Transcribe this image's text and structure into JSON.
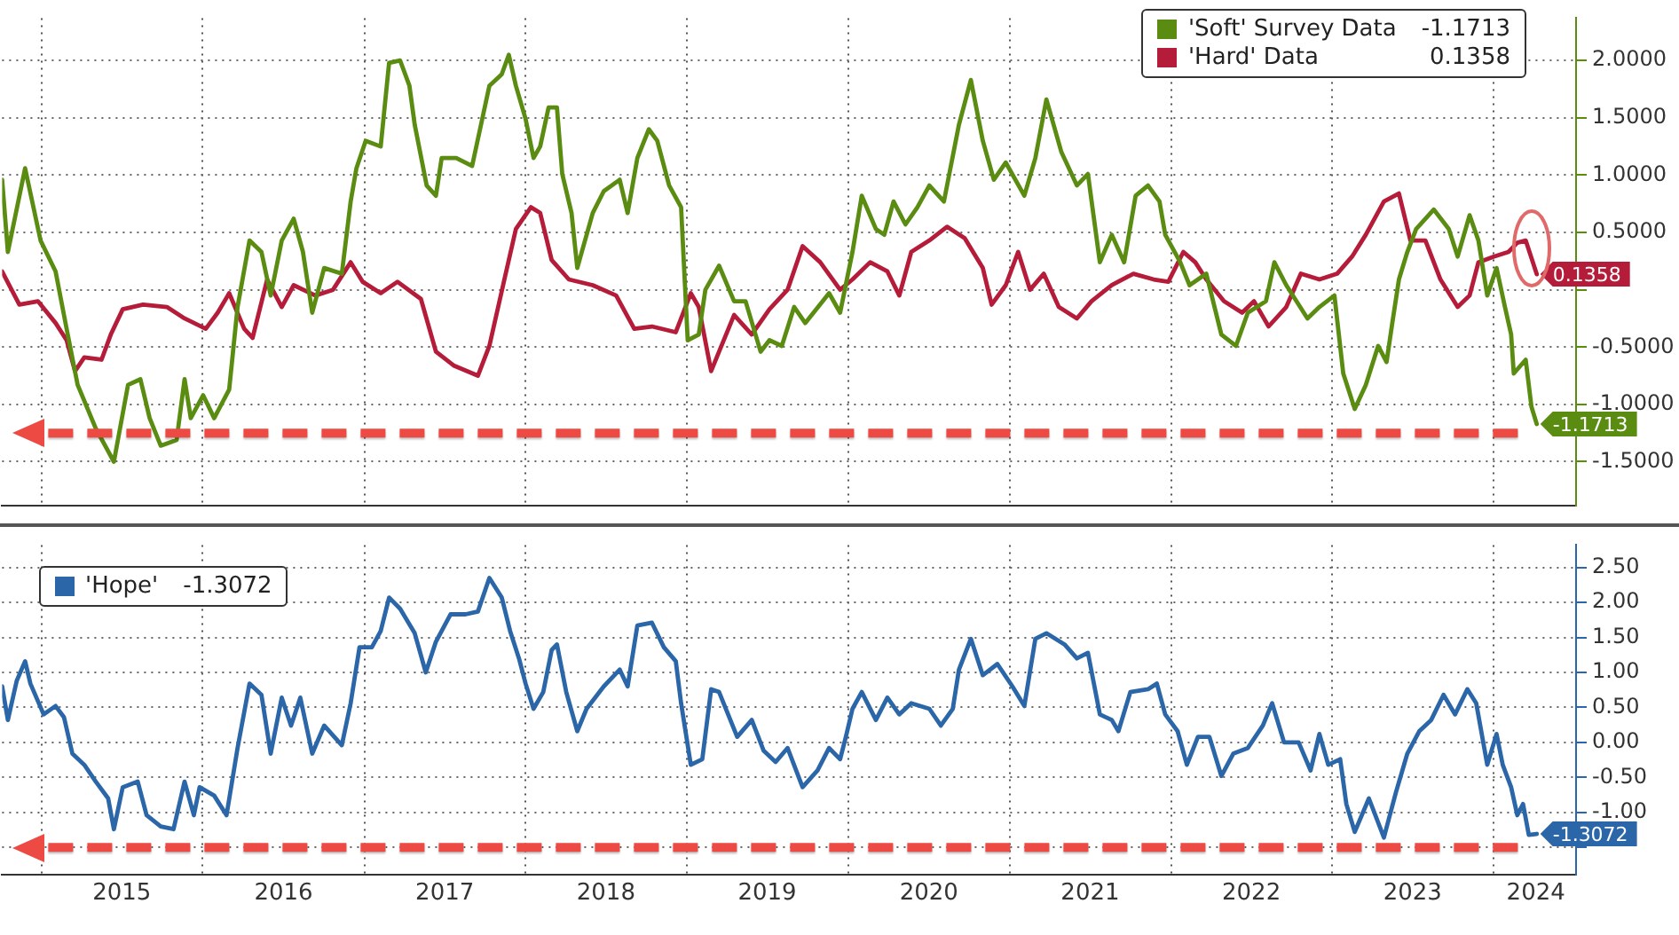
{
  "chart_data": [
    {
      "type": "line",
      "legend": "top right",
      "grid": true,
      "tick_labels": "y",
      "marker": "none",
      "xlim": [
        "2014-10-04",
        "2024-07-06"
      ],
      "xticks": [
        {
          "value": "2015-01-01",
          "label": null
        },
        {
          "value": "2016-01-01",
          "label": null
        },
        {
          "value": "2017-01-01",
          "label": null
        },
        {
          "value": "2018-01-01",
          "label": null
        },
        {
          "value": "2019-01-01",
          "label": null
        },
        {
          "value": "2020-01-01",
          "label": null
        },
        {
          "value": "2021-01-01",
          "label": null
        },
        {
          "value": "2022-01-01",
          "label": null
        },
        {
          "value": "2023-01-01",
          "label": null
        },
        {
          "value": "2024-01-01",
          "label": null
        }
      ],
      "ylim": [
        -1.88,
        2.37
      ],
      "yticks": [
        {
          "value": -1.5,
          "label": "-1.5000"
        },
        {
          "value": -1,
          "label": "-1.0000"
        },
        {
          "value": -0.5,
          "label": "-0.5000"
        },
        {
          "value": 0,
          "label": null
        },
        {
          "value": 0.5,
          "label": "0.5000"
        },
        {
          "value": 1,
          "label": "1.0000"
        },
        {
          "value": 1.5,
          "label": "1.5000"
        },
        {
          "value": 2,
          "label": "2.0000"
        }
      ],
      "ref_lines": [
        {
          "axis": "y",
          "value": -1.25,
          "label": null,
          "color": "#ee4a44",
          "line_style": "dashed"
        }
      ],
      "series": [
        {
          "name": "'Soft' Survey Data",
          "color": "#5b8c12",
          "x": [
            "2014-10-04",
            "2014-10-17",
            "2014-11-25",
            "2014-12-30",
            "2015-02-02",
            "2015-02-27",
            "2015-03-24",
            "2015-05-04",
            "2015-06-14",
            "2015-07-16",
            "2015-08-13",
            "2015-09-03",
            "2015-09-28",
            "2015-11-03",
            "2015-11-21",
            "2015-12-05",
            "2016-01-02",
            "2016-01-27",
            "2016-03-01",
            "2016-03-20",
            "2016-04-16",
            "2016-05-13",
            "2016-06-03",
            "2016-06-28",
            "2016-07-25",
            "2016-08-15",
            "2016-09-05",
            "2016-10-02",
            "2016-11-11",
            "2016-12-01",
            "2016-12-14",
            "2017-01-04",
            "2017-02-07",
            "2017-02-26",
            "2017-03-23",
            "2017-04-13",
            "2017-04-25",
            "2017-05-22",
            "2017-06-12",
            "2017-06-25",
            "2017-07-28",
            "2017-09-02",
            "2017-10-11",
            "2017-11-08",
            "2017-11-24",
            "2017-12-10",
            "2018-01-01",
            "2018-01-19",
            "2018-02-03",
            "2018-02-22",
            "2018-03-13",
            "2018-03-25",
            "2018-04-15",
            "2018-04-28",
            "2018-06-02",
            "2018-06-27",
            "2018-08-02",
            "2018-08-20",
            "2018-09-11",
            "2018-10-07",
            "2018-10-26",
            "2018-11-22",
            "2018-12-19",
            "2019-01-03",
            "2019-01-28",
            "2019-02-12",
            "2019-03-15",
            "2019-04-18",
            "2019-05-14",
            "2019-06-17",
            "2019-07-07",
            "2019-08-04",
            "2019-09-01",
            "2019-09-26",
            "2019-11-19",
            "2019-12-14",
            "2020-01-11",
            "2020-02-01",
            "2020-03-04",
            "2020-03-23",
            "2020-04-13",
            "2020-05-10",
            "2020-06-06",
            "2020-07-03",
            "2020-08-05",
            "2020-09-08",
            "2020-10-05",
            "2020-11-01",
            "2020-11-26",
            "2020-12-23",
            "2021-02-03",
            "2021-02-28",
            "2021-03-25",
            "2021-04-28",
            "2021-06-02",
            "2021-06-27",
            "2021-07-24",
            "2021-08-20",
            "2021-09-17",
            "2021-10-13",
            "2021-11-10",
            "2021-12-06",
            "2021-12-19",
            "2022-01-22",
            "2022-02-12",
            "2022-03-22",
            "2022-04-25",
            "2022-05-28",
            "2022-06-24",
            "2022-08-04",
            "2022-08-23",
            "2022-09-19",
            "2022-11-06",
            "2022-12-03",
            "2023-01-06",
            "2023-01-26",
            "2023-02-21",
            "2023-03-18",
            "2023-04-15",
            "2023-05-04",
            "2023-05-17",
            "2023-06-01",
            "2023-06-20",
            "2023-07-10",
            "2023-08-19",
            "2023-09-22",
            "2023-10-12",
            "2023-11-08",
            "2023-11-28",
            "2023-12-18",
            "2024-01-08",
            "2024-01-27",
            "2024-02-10",
            "2024-02-16",
            "2024-03-14",
            "2024-03-27",
            "2024-04-08"
          ],
          "values": [
            0.96,
            0.33,
            1.06,
            0.43,
            0.16,
            -0.34,
            -0.83,
            -1.21,
            -1.5,
            -0.83,
            -0.78,
            -1.12,
            -1.36,
            -1.31,
            -0.78,
            -1.12,
            -0.92,
            -1.12,
            -0.87,
            -0.15,
            0.43,
            0.33,
            -0.05,
            0.43,
            0.62,
            0.33,
            -0.2,
            0.19,
            0.14,
            0.77,
            1.06,
            1.3,
            1.25,
            1.98,
            2.0,
            1.78,
            1.44,
            0.91,
            0.82,
            1.15,
            1.15,
            1.08,
            1.78,
            1.88,
            2.05,
            1.78,
            1.49,
            1.15,
            1.25,
            1.59,
            1.59,
            1.01,
            0.67,
            0.19,
            0.67,
            0.86,
            0.96,
            0.67,
            1.15,
            1.4,
            1.3,
            0.91,
            0.72,
            -0.44,
            -0.39,
            0.0,
            0.21,
            -0.1,
            -0.1,
            -0.54,
            -0.44,
            -0.49,
            -0.15,
            -0.29,
            -0.03,
            -0.2,
            0.33,
            0.82,
            0.53,
            0.48,
            0.77,
            0.57,
            0.72,
            0.91,
            0.77,
            1.44,
            1.83,
            1.3,
            0.96,
            1.11,
            0.82,
            1.15,
            1.66,
            1.2,
            0.91,
            1.01,
            0.24,
            0.48,
            0.24,
            0.82,
            0.91,
            0.77,
            0.48,
            0.24,
            0.04,
            0.14,
            -0.39,
            -0.49,
            -0.2,
            -0.1,
            0.24,
            0.04,
            -0.25,
            -0.15,
            -0.05,
            -0.73,
            -1.04,
            -0.83,
            -0.49,
            -0.63,
            -0.29,
            0.09,
            0.33,
            0.53,
            0.7,
            0.53,
            0.29,
            0.65,
            0.43,
            -0.05,
            0.19,
            -0.15,
            -0.39,
            -0.73,
            -0.61,
            -1.02,
            -1.1713
          ],
          "value_labels": [
            null,
            null,
            null,
            null,
            null,
            null,
            null,
            null,
            null,
            null,
            null,
            null,
            null,
            null,
            null,
            null,
            null,
            null,
            null,
            null,
            null,
            null,
            null,
            null,
            null,
            null,
            null,
            null,
            null,
            null,
            null,
            null,
            null,
            null,
            null,
            null,
            null,
            null,
            null,
            null,
            null,
            null,
            null,
            null,
            null,
            null,
            null,
            null,
            null,
            null,
            null,
            null,
            null,
            null,
            null,
            null,
            null,
            null,
            null,
            null,
            null,
            null,
            null,
            null,
            null,
            null,
            null,
            null,
            null,
            null,
            null,
            null,
            null,
            null,
            null,
            null,
            null,
            null,
            null,
            null,
            null,
            null,
            null,
            null,
            null,
            null,
            null,
            null,
            null,
            null,
            null,
            null,
            null,
            null,
            null,
            null,
            null,
            null,
            null,
            null,
            null,
            null,
            null,
            null,
            null,
            null,
            null,
            null,
            null,
            null,
            null,
            null,
            null,
            null,
            null,
            null,
            null,
            null,
            null,
            null,
            null,
            null,
            null,
            null,
            null,
            null,
            null,
            null,
            null,
            null,
            null,
            null,
            null,
            null,
            null,
            null,
            "-1.1713"
          ]
        },
        {
          "name": "'Hard' Data",
          "color": "#b51c3a",
          "x": [
            "2014-10-04",
            "2014-11-12",
            "2014-12-24",
            "2015-02-02",
            "2015-02-27",
            "2015-03-18",
            "2015-04-08",
            "2015-05-17",
            "2015-06-07",
            "2015-07-04",
            "2015-08-19",
            "2015-10-12",
            "2015-11-21",
            "2016-01-08",
            "2016-02-04",
            "2016-03-01",
            "2016-04-04",
            "2016-04-23",
            "2016-05-26",
            "2016-06-28",
            "2016-07-25",
            "2016-09-12",
            "2016-10-22",
            "2016-12-01",
            "2016-12-28",
            "2017-02-07",
            "2017-03-17",
            "2017-05-09",
            "2017-06-12",
            "2017-07-22",
            "2017-09-15",
            "2017-10-11",
            "2017-11-14",
            "2017-12-10",
            "2018-01-13",
            "2018-02-03",
            "2018-03-01",
            "2018-04-09",
            "2018-06-02",
            "2018-07-25",
            "2018-09-04",
            "2018-10-14",
            "2018-12-07",
            "2019-01-10",
            "2019-01-28",
            "2019-02-25",
            "2019-03-15",
            "2019-04-18",
            "2019-05-28",
            "2019-07-07",
            "2019-08-17",
            "2019-09-20",
            "2019-10-30",
            "2019-12-14",
            "2020-01-11",
            "2020-02-20",
            "2020-03-30",
            "2020-04-26",
            "2020-05-23",
            "2020-07-03",
            "2020-08-12",
            "2020-09-21",
            "2020-11-01",
            "2020-11-21",
            "2020-12-23",
            "2021-01-20",
            "2021-02-16",
            "2021-03-19",
            "2021-04-22",
            "2021-06-02",
            "2021-07-05",
            "2021-08-20",
            "2021-10-08",
            "2021-11-23",
            "2021-12-26",
            "2022-01-29",
            "2022-02-25",
            "2022-03-22",
            "2022-05-01",
            "2022-06-11",
            "2022-07-08",
            "2022-08-10",
            "2022-09-19",
            "2022-10-22",
            "2022-12-03",
            "2023-01-12",
            "2023-02-15",
            "2023-03-18",
            "2023-04-28",
            "2023-06-01",
            "2023-06-27",
            "2023-07-31",
            "2023-09-03",
            "2023-10-12",
            "2023-11-08",
            "2023-11-28",
            "2024-01-02",
            "2024-02-04",
            "2024-02-24",
            "2024-03-14",
            "2024-04-08"
          ],
          "values": [
            0.16,
            -0.13,
            -0.1,
            -0.29,
            -0.44,
            -0.71,
            -0.59,
            -0.61,
            -0.39,
            -0.17,
            -0.13,
            -0.15,
            -0.25,
            -0.34,
            -0.2,
            -0.03,
            -0.34,
            -0.42,
            0.09,
            -0.15,
            0.04,
            -0.05,
            0.0,
            0.24,
            0.07,
            -0.03,
            0.07,
            -0.08,
            -0.54,
            -0.66,
            -0.75,
            -0.49,
            0.09,
            0.53,
            0.72,
            0.67,
            0.26,
            0.09,
            0.04,
            -0.05,
            -0.34,
            -0.32,
            -0.37,
            -0.03,
            -0.15,
            -0.71,
            -0.54,
            -0.22,
            -0.39,
            -0.17,
            0.0,
            0.38,
            0.24,
            0.0,
            0.09,
            0.24,
            0.16,
            -0.05,
            0.33,
            0.43,
            0.55,
            0.45,
            0.19,
            -0.13,
            0.04,
            0.33,
            0.0,
            0.14,
            -0.15,
            -0.25,
            -0.1,
            0.04,
            0.14,
            0.09,
            0.07,
            0.33,
            0.24,
            0.09,
            -0.1,
            -0.2,
            -0.1,
            -0.32,
            -0.15,
            0.14,
            0.09,
            0.14,
            0.29,
            0.48,
            0.77,
            0.84,
            0.43,
            0.43,
            0.09,
            -0.15,
            -0.05,
            0.24,
            0.29,
            0.33,
            0.41,
            0.43,
            0.1358
          ],
          "value_labels": [
            null,
            null,
            null,
            null,
            null,
            null,
            null,
            null,
            null,
            null,
            null,
            null,
            null,
            null,
            null,
            null,
            null,
            null,
            null,
            null,
            null,
            null,
            null,
            null,
            null,
            null,
            null,
            null,
            null,
            null,
            null,
            null,
            null,
            null,
            null,
            null,
            null,
            null,
            null,
            null,
            null,
            null,
            null,
            null,
            null,
            null,
            null,
            null,
            null,
            null,
            null,
            null,
            null,
            null,
            null,
            null,
            null,
            null,
            null,
            null,
            null,
            null,
            null,
            null,
            null,
            null,
            null,
            null,
            null,
            null,
            null,
            null,
            null,
            null,
            null,
            null,
            null,
            null,
            null,
            null,
            null,
            null,
            null,
            null,
            null,
            null,
            null,
            null,
            null,
            null,
            null,
            null,
            null,
            null,
            null,
            null,
            null,
            null,
            null,
            null,
            "0.1358"
          ]
        }
      ]
    },
    {
      "type": "line",
      "legend": "top left",
      "grid": true,
      "marker": "none",
      "xlim": [
        "2014-10-04",
        "2024-07-06"
      ],
      "xticks": [
        {
          "value": "2015-01-01",
          "label": null
        },
        {
          "value": "2015-07-02",
          "label": "2015"
        },
        {
          "value": "2016-01-01",
          "label": null
        },
        {
          "value": "2016-07-02",
          "label": "2016"
        },
        {
          "value": "2017-01-01",
          "label": null
        },
        {
          "value": "2017-07-02",
          "label": "2017"
        },
        {
          "value": "2018-01-01",
          "label": null
        },
        {
          "value": "2018-07-02",
          "label": "2018"
        },
        {
          "value": "2019-01-01",
          "label": null
        },
        {
          "value": "2019-07-02",
          "label": "2019"
        },
        {
          "value": "2020-01-01",
          "label": null
        },
        {
          "value": "2020-07-02",
          "label": "2020"
        },
        {
          "value": "2021-01-01",
          "label": null
        },
        {
          "value": "2021-07-02",
          "label": "2021"
        },
        {
          "value": "2022-01-01",
          "label": null
        },
        {
          "value": "2022-07-02",
          "label": "2022"
        },
        {
          "value": "2023-01-01",
          "label": null
        },
        {
          "value": "2023-07-02",
          "label": "2023"
        },
        {
          "value": "2024-01-01",
          "label": null
        },
        {
          "value": "2024-04-06",
          "label": "2024"
        }
      ],
      "ylim": [
        -1.89,
        2.82
      ],
      "yticks": [
        {
          "value": -1.5,
          "label": null
        },
        {
          "value": -1,
          "label": "-1.00"
        },
        {
          "value": -0.5,
          "label": "-0.50"
        },
        {
          "value": 0,
          "label": "0.00"
        },
        {
          "value": 0.5,
          "label": "0.50"
        },
        {
          "value": 1,
          "label": "1.00"
        },
        {
          "value": 1.5,
          "label": "1.50"
        },
        {
          "value": 2,
          "label": "2.00"
        },
        {
          "value": 2.5,
          "label": "2.50"
        }
      ],
      "ref_lines": [
        {
          "axis": "y",
          "value": -1.5,
          "label": null,
          "color": "#ee4a44",
          "line_style": "dashed"
        }
      ],
      "series": [
        {
          "name": "'Hope'",
          "color": "#2b67a8",
          "x": [
            "2014-10-04",
            "2014-10-17",
            "2014-11-06",
            "2014-11-25",
            "2014-12-07",
            "2015-01-06",
            "2015-02-02",
            "2015-02-21",
            "2015-03-12",
            "2015-04-08",
            "2015-05-04",
            "2015-06-01",
            "2015-06-14",
            "2015-07-04",
            "2015-08-07",
            "2015-08-27",
            "2015-09-28",
            "2015-10-27",
            "2015-11-21",
            "2015-12-12",
            "2015-12-25",
            "2016-01-27",
            "2016-02-24",
            "2016-03-20",
            "2016-04-16",
            "2016-05-13",
            "2016-06-03",
            "2016-06-28",
            "2016-07-19",
            "2016-08-09",
            "2016-09-05",
            "2016-10-02",
            "2016-11-11",
            "2016-12-01",
            "2016-12-21",
            "2017-01-18",
            "2017-02-07",
            "2017-02-26",
            "2017-03-23",
            "2017-04-25",
            "2017-05-20",
            "2017-06-12",
            "2017-07-15",
            "2017-08-18",
            "2017-09-15",
            "2017-10-11",
            "2017-11-08",
            "2017-11-27",
            "2017-12-17",
            "2018-01-01",
            "2018-01-19",
            "2018-02-10",
            "2018-03-01",
            "2018-03-13",
            "2018-04-03",
            "2018-04-28",
            "2018-05-19",
            "2018-06-27",
            "2018-08-02",
            "2018-08-20",
            "2018-09-11",
            "2018-10-14",
            "2018-11-10",
            "2018-12-07",
            "2018-12-19",
            "2019-01-10",
            "2019-02-05",
            "2019-02-25",
            "2019-03-15",
            "2019-04-25",
            "2019-05-28",
            "2019-06-24",
            "2019-07-21",
            "2019-08-17",
            "2019-09-20",
            "2019-10-24",
            "2019-11-19",
            "2019-12-14",
            "2019-12-27",
            "2020-01-11",
            "2020-02-01",
            "2020-03-04",
            "2020-03-30",
            "2020-04-26",
            "2020-05-23",
            "2020-07-03",
            "2020-07-29",
            "2020-08-25",
            "2020-09-08",
            "2020-10-05",
            "2020-11-01",
            "2020-12-04",
            "2021-01-07",
            "2021-02-03",
            "2021-02-28",
            "2021-03-25",
            "2021-05-05",
            "2021-06-02",
            "2021-06-27",
            "2021-07-24",
            "2021-08-20",
            "2021-09-04",
            "2021-10-01",
            "2021-11-10",
            "2021-11-30",
            "2021-12-19",
            "2022-01-16",
            "2022-02-06",
            "2022-03-03",
            "2022-03-29",
            "2022-04-25",
            "2022-05-22",
            "2022-06-24",
            "2022-07-28",
            "2022-08-18",
            "2022-09-14",
            "2022-10-17",
            "2022-11-13",
            "2022-12-03",
            "2022-12-23",
            "2023-01-19",
            "2023-02-02",
            "2023-02-21",
            "2023-03-25",
            "2023-04-28",
            "2023-05-25",
            "2023-06-20",
            "2023-07-17",
            "2023-08-13",
            "2023-09-10",
            "2023-10-06",
            "2023-11-03",
            "2023-11-23",
            "2023-12-18",
            "2024-01-08",
            "2024-01-22",
            "2024-02-10",
            "2024-02-24",
            "2024-03-08",
            "2024-03-21",
            "2024-04-08"
          ],
          "values": [
            0.8,
            0.32,
            0.88,
            1.16,
            0.84,
            0.4,
            0.52,
            0.36,
            -0.16,
            -0.32,
            -0.56,
            -0.8,
            -1.24,
            -0.64,
            -0.56,
            -1.04,
            -1.2,
            -1.24,
            -0.56,
            -1.04,
            -0.64,
            -0.76,
            -1.04,
            -0.08,
            0.84,
            0.68,
            -0.16,
            0.64,
            0.24,
            0.64,
            -0.16,
            0.24,
            -0.04,
            0.56,
            1.36,
            1.36,
            1.59,
            2.07,
            1.91,
            1.56,
            1.0,
            1.44,
            1.83,
            1.83,
            1.87,
            2.35,
            2.07,
            1.59,
            1.2,
            0.84,
            0.48,
            0.72,
            1.32,
            1.4,
            0.72,
            0.16,
            0.48,
            0.8,
            1.04,
            0.8,
            1.67,
            1.71,
            1.36,
            1.16,
            0.56,
            -0.32,
            -0.24,
            0.76,
            0.72,
            0.08,
            0.32,
            -0.12,
            -0.28,
            -0.08,
            -0.64,
            -0.4,
            -0.08,
            -0.24,
            0.08,
            0.48,
            0.72,
            0.32,
            0.64,
            0.4,
            0.56,
            0.48,
            0.24,
            0.48,
            1.04,
            1.48,
            0.96,
            1.12,
            0.8,
            0.52,
            1.48,
            1.56,
            1.4,
            1.2,
            1.28,
            0.4,
            0.32,
            0.16,
            0.72,
            0.76,
            0.84,
            0.4,
            0.16,
            -0.32,
            0.08,
            0.08,
            -0.48,
            -0.16,
            -0.08,
            0.24,
            0.56,
            0.0,
            0.0,
            -0.4,
            0.12,
            -0.32,
            -0.24,
            -0.88,
            -1.28,
            -0.8,
            -1.36,
            -0.72,
            -0.16,
            0.16,
            0.32,
            0.68,
            0.4,
            0.76,
            0.56,
            -0.32,
            0.12,
            -0.32,
            -0.64,
            -1.04,
            -0.88,
            -1.32,
            -1.3072
          ],
          "value_labels": [
            null,
            null,
            null,
            null,
            null,
            null,
            null,
            null,
            null,
            null,
            null,
            null,
            null,
            null,
            null,
            null,
            null,
            null,
            null,
            null,
            null,
            null,
            null,
            null,
            null,
            null,
            null,
            null,
            null,
            null,
            null,
            null,
            null,
            null,
            null,
            null,
            null,
            null,
            null,
            null,
            null,
            null,
            null,
            null,
            null,
            null,
            null,
            null,
            null,
            null,
            null,
            null,
            null,
            null,
            null,
            null,
            null,
            null,
            null,
            null,
            null,
            null,
            null,
            null,
            null,
            null,
            null,
            null,
            null,
            null,
            null,
            null,
            null,
            null,
            null,
            null,
            null,
            null,
            null,
            null,
            null,
            null,
            null,
            null,
            null,
            null,
            null,
            null,
            null,
            null,
            null,
            null,
            null,
            null,
            null,
            null,
            null,
            null,
            null,
            null,
            null,
            null,
            null,
            null,
            null,
            null,
            null,
            null,
            null,
            null,
            null,
            null,
            null,
            null,
            null,
            null,
            null,
            null,
            null,
            null,
            null,
            null,
            null,
            null,
            null,
            null,
            null,
            null,
            null,
            null,
            null,
            null,
            null,
            null,
            null,
            null,
            null,
            null,
            null,
            null,
            "-1.3072"
          ]
        }
      ]
    }
  ]
}
